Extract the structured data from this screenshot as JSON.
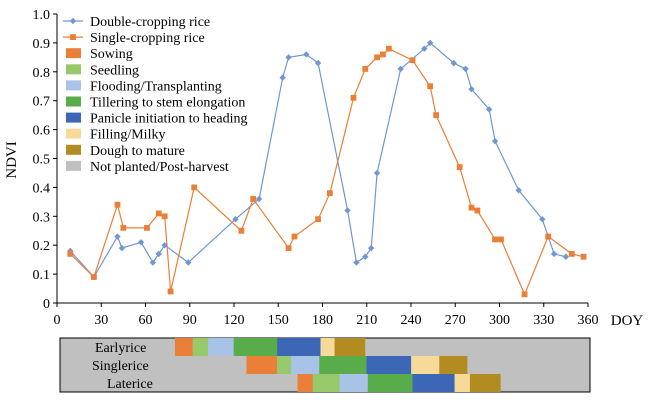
{
  "chart_data": {
    "type": "line",
    "xlabel": "DOY",
    "ylabel": "NDVI",
    "xlim": [
      0,
      360
    ],
    "ylim": [
      0,
      1.0
    ],
    "x_ticks": [
      0,
      30,
      60,
      90,
      120,
      150,
      180,
      210,
      240,
      270,
      300,
      330,
      360
    ],
    "y_ticks": [
      0,
      0.1,
      0.2,
      0.3,
      0.4,
      0.5,
      0.6,
      0.7,
      0.8,
      0.9,
      1.0
    ],
    "y_tick_labels": [
      "0",
      "0.1",
      "0.2",
      "0.3",
      "0.4",
      "0.5",
      "0.6",
      "0.7",
      "0.8",
      "0.9",
      "1.0"
    ],
    "grid": false,
    "legend_position": "top-left",
    "series": [
      {
        "name": "Double-cropping rice",
        "color": "#6f97d2",
        "marker": "diamond",
        "points": [
          [
            9,
            0.18
          ],
          [
            25,
            0.09
          ],
          [
            41,
            0.23
          ],
          [
            44,
            0.19
          ],
          [
            57,
            0.21
          ],
          [
            65,
            0.14
          ],
          [
            69,
            0.17
          ],
          [
            73,
            0.2
          ],
          [
            89,
            0.14
          ],
          [
            121,
            0.29
          ],
          [
            137,
            0.36
          ],
          [
            153,
            0.78
          ],
          [
            157,
            0.85
          ],
          [
            169,
            0.86
          ],
          [
            177,
            0.83
          ],
          [
            197,
            0.32
          ],
          [
            203,
            0.14
          ],
          [
            209,
            0.16
          ],
          [
            213,
            0.19
          ],
          [
            217,
            0.45
          ],
          [
            233,
            0.81
          ],
          [
            249,
            0.88
          ],
          [
            253,
            0.9
          ],
          [
            269,
            0.83
          ],
          [
            277,
            0.81
          ],
          [
            281,
            0.74
          ],
          [
            293,
            0.67
          ],
          [
            297,
            0.56
          ],
          [
            313,
            0.39
          ],
          [
            329,
            0.29
          ],
          [
            337,
            0.17
          ],
          [
            345,
            0.16
          ]
        ]
      },
      {
        "name": "Single-cropping rice",
        "color": "#ea7f37",
        "marker": "square",
        "points": [
          [
            9,
            0.17
          ],
          [
            25,
            0.09
          ],
          [
            41,
            0.34
          ],
          [
            45,
            0.26
          ],
          [
            61,
            0.26
          ],
          [
            69,
            0.31
          ],
          [
            73,
            0.3
          ],
          [
            77,
            0.04
          ],
          [
            93,
            0.4
          ],
          [
            125,
            0.25
          ],
          [
            133,
            0.36
          ],
          [
            157,
            0.19
          ],
          [
            161,
            0.23
          ],
          [
            177,
            0.29
          ],
          [
            185,
            0.38
          ],
          [
            201,
            0.71
          ],
          [
            209,
            0.81
          ],
          [
            217,
            0.85
          ],
          [
            221,
            0.86
          ],
          [
            225,
            0.88
          ],
          [
            241,
            0.84
          ],
          [
            253,
            0.75
          ],
          [
            257,
            0.65
          ],
          [
            273,
            0.47
          ],
          [
            281,
            0.33
          ],
          [
            285,
            0.32
          ],
          [
            297,
            0.22
          ],
          [
            301,
            0.22
          ],
          [
            317,
            0.03
          ],
          [
            333,
            0.23
          ],
          [
            349,
            0.17
          ],
          [
            357,
            0.16
          ]
        ]
      }
    ],
    "phenology_legend": [
      {
        "name": "Sowing",
        "color": "#ea7f37"
      },
      {
        "name": "Seedling",
        "color": "#96c96a"
      },
      {
        "name": "Flooding/Transplanting",
        "color": "#a9c2e7"
      },
      {
        "name": "Tillering to stem elongation",
        "color": "#58ac49"
      },
      {
        "name": "Panicle initiation to heading",
        "color": "#3b67b6"
      },
      {
        "name": "Filling/Milky",
        "color": "#f7d99a"
      },
      {
        "name": "Dough to mature",
        "color": "#b38c21"
      },
      {
        "name": "Not planted/Post-harvest",
        "color": "#c0c0c0"
      }
    ],
    "calendar_background": "#c0c0c0",
    "calendar_rows": [
      {
        "label": "Earlyrice",
        "segments": [
          {
            "stage": "Sowing",
            "start": 90,
            "end": 104
          },
          {
            "stage": "Seedling",
            "start": 104,
            "end": 116
          },
          {
            "stage": "Flooding/Transplanting",
            "start": 116,
            "end": 136
          },
          {
            "stage": "Tillering to stem elongation",
            "start": 136,
            "end": 170
          },
          {
            "stage": "Panicle initiation to heading",
            "start": 170,
            "end": 204
          },
          {
            "stage": "Filling/Milky",
            "start": 204,
            "end": 215
          },
          {
            "stage": "Dough to mature",
            "start": 215,
            "end": 239
          }
        ]
      },
      {
        "label": "Singlerice",
        "segments": [
          {
            "stage": "Sowing",
            "start": 146,
            "end": 170
          },
          {
            "stage": "Seedling",
            "start": 170,
            "end": 181
          },
          {
            "stage": "Flooding/Transplanting",
            "start": 181,
            "end": 203
          },
          {
            "stage": "Tillering to stem elongation",
            "start": 203,
            "end": 240
          },
          {
            "stage": "Panicle initiation to heading",
            "start": 240,
            "end": 275
          },
          {
            "stage": "Filling/Milky",
            "start": 275,
            "end": 297
          },
          {
            "stage": "Dough to mature",
            "start": 297,
            "end": 319
          }
        ]
      },
      {
        "label": "Laterice",
        "segments": [
          {
            "stage": "Sowing",
            "start": 186,
            "end": 198
          },
          {
            "stage": "Seedling",
            "start": 198,
            "end": 219
          },
          {
            "stage": "Flooding/Transplanting",
            "start": 219,
            "end": 241
          },
          {
            "stage": "Tillering to stem elongation",
            "start": 241,
            "end": 276
          },
          {
            "stage": "Panicle initiation to heading",
            "start": 276,
            "end": 309
          },
          {
            "stage": "Filling/Milky",
            "start": 309,
            "end": 321
          },
          {
            "stage": "Dough to mature",
            "start": 321,
            "end": 345
          }
        ]
      }
    ],
    "calendar_xlim": [
      0,
      415
    ]
  }
}
